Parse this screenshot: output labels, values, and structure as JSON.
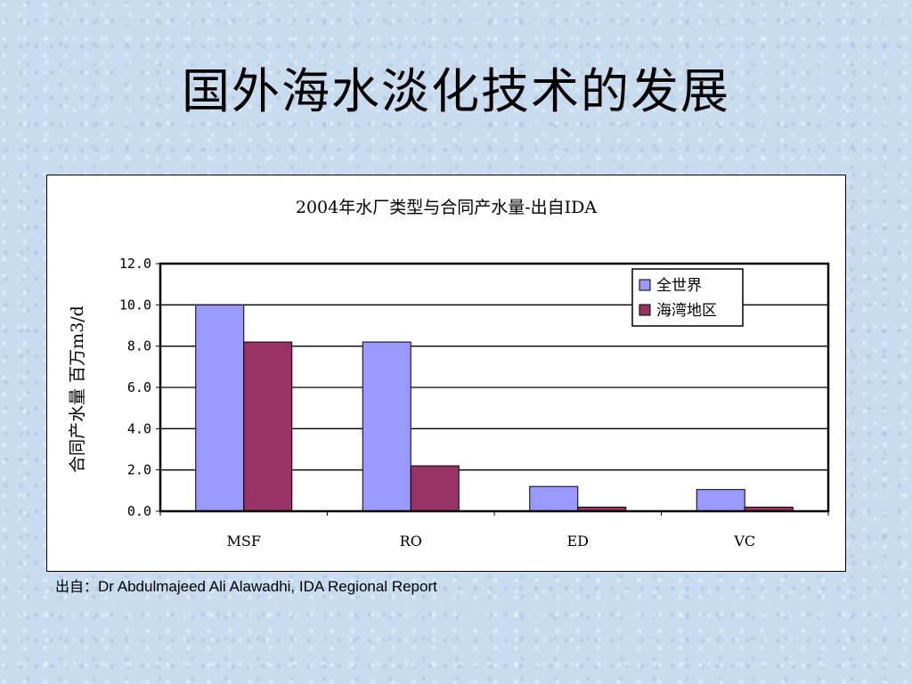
{
  "slide": {
    "title": "国外海水淡化技术的发展",
    "source_prefix": "出自：",
    "source_text": "Dr Abdulmajeed Ali Alawadhi, IDA Regional Report"
  },
  "chart_data": {
    "type": "bar",
    "title": "2004年水厂类型与合同产水量-出自IDA",
    "xlabel": "",
    "ylabel": "合同产水量 百万m3/d",
    "categories": [
      "MSF",
      "RO",
      "ED",
      "VC"
    ],
    "series": [
      {
        "name": "全世界",
        "values": [
          10.0,
          8.2,
          1.2,
          1.05
        ],
        "color": "#9999ff"
      },
      {
        "name": "海湾地区",
        "values": [
          8.2,
          2.2,
          0.2,
          0.2
        ],
        "color": "#993366"
      }
    ],
    "ylim": [
      0,
      12
    ],
    "yticks": [
      "0.0",
      "2.0",
      "4.0",
      "6.0",
      "8.0",
      "10.0",
      "12.0"
    ],
    "grid": true,
    "legend_position": "top-right"
  }
}
